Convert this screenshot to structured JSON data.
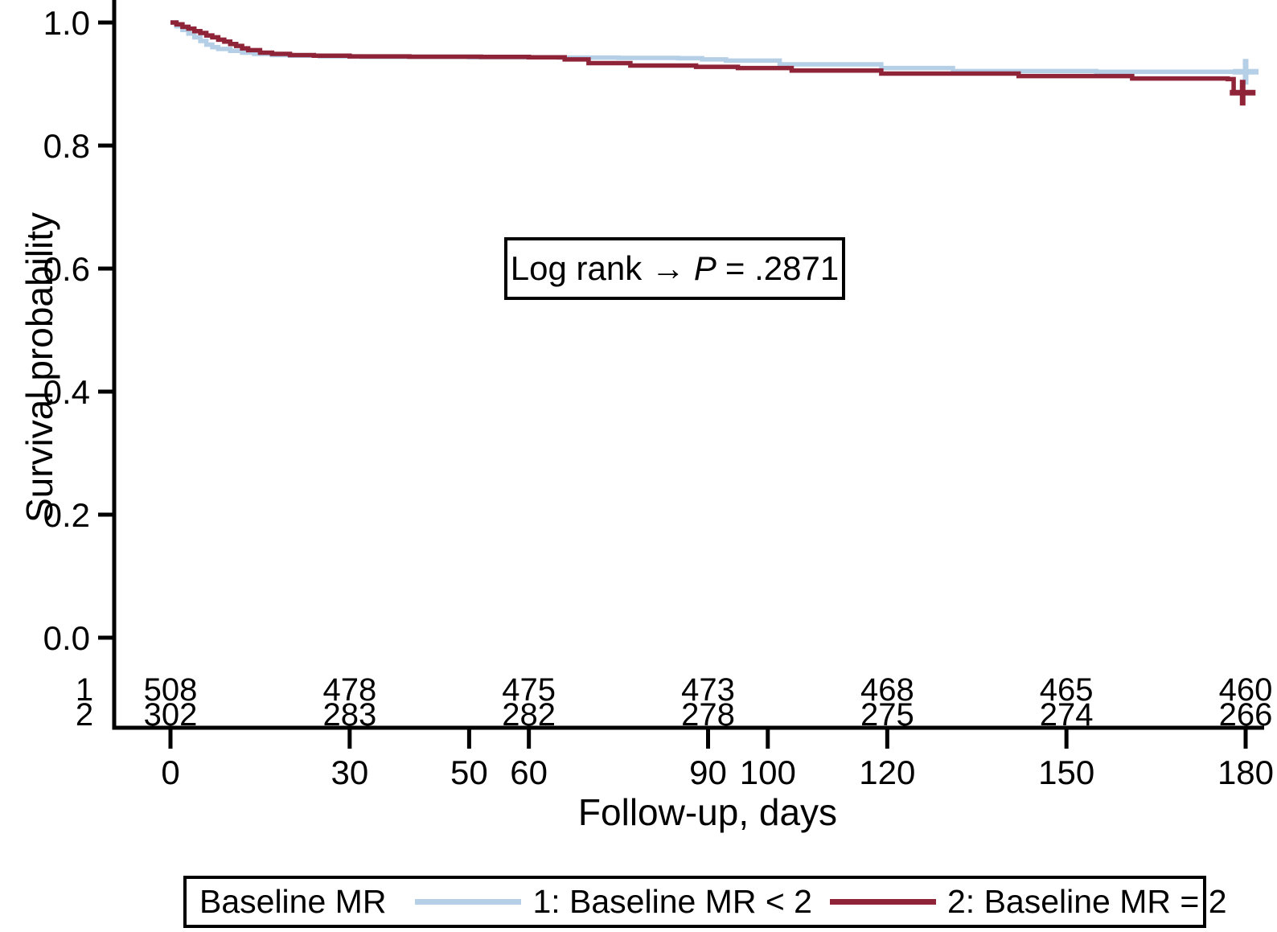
{
  "chart_data": {
    "type": "line",
    "subtype": "kaplan-meier-step-survival",
    "title": "",
    "xlabel": "Follow-up, days",
    "ylabel": "Survival probability",
    "xlim": [
      0,
      180
    ],
    "ylim": [
      0.0,
      1.0
    ],
    "x_ticks": [
      0,
      30,
      50,
      60,
      90,
      100,
      120,
      150,
      180
    ],
    "y_ticks": [
      1.0,
      0.8,
      0.6,
      0.4,
      0.2,
      0.0
    ],
    "grid": false,
    "legend_position": "bottom",
    "series": [
      {
        "name": "1: Baseline MR < 2",
        "group": "1",
        "color": "#b5cfe6",
        "points": [
          [
            0,
            1.0
          ],
          [
            1,
            0.994
          ],
          [
            2,
            0.988
          ],
          [
            3,
            0.982
          ],
          [
            4,
            0.976
          ],
          [
            5,
            0.97
          ],
          [
            6,
            0.964
          ],
          [
            7,
            0.96
          ],
          [
            8,
            0.957
          ],
          [
            10,
            0.954
          ],
          [
            12,
            0.951
          ],
          [
            14,
            0.949
          ],
          [
            17,
            0.947
          ],
          [
            20,
            0.946
          ],
          [
            25,
            0.945
          ],
          [
            32,
            0.944
          ],
          [
            50,
            0.9435
          ],
          [
            65,
            0.943
          ],
          [
            75,
            0.9425
          ],
          [
            85,
            0.942
          ],
          [
            89,
            0.94
          ],
          [
            93,
            0.938
          ],
          [
            102,
            0.932
          ],
          [
            119,
            0.926
          ],
          [
            131,
            0.921
          ],
          [
            155,
            0.92
          ],
          [
            180,
            0.92
          ]
        ],
        "censor_marks": [
          [
            180,
            0.92
          ]
        ]
      },
      {
        "name": "2: Baseline MR = 2",
        "group": "2",
        "color": "#8f2438",
        "points": [
          [
            0,
            1.0
          ],
          [
            1,
            0.997
          ],
          [
            2,
            0.993
          ],
          [
            3,
            0.99
          ],
          [
            4,
            0.986
          ],
          [
            5,
            0.983
          ],
          [
            6,
            0.979
          ],
          [
            7,
            0.976
          ],
          [
            8,
            0.972
          ],
          [
            9,
            0.969
          ],
          [
            10,
            0.965
          ],
          [
            11,
            0.962
          ],
          [
            12,
            0.958
          ],
          [
            13,
            0.955
          ],
          [
            15,
            0.951
          ],
          [
            17,
            0.949
          ],
          [
            20,
            0.947
          ],
          [
            24,
            0.946
          ],
          [
            30,
            0.945
          ],
          [
            40,
            0.9445
          ],
          [
            52,
            0.944
          ],
          [
            60,
            0.9435
          ],
          [
            66,
            0.94
          ],
          [
            70,
            0.934
          ],
          [
            77,
            0.93
          ],
          [
            88,
            0.928
          ],
          [
            95,
            0.926
          ],
          [
            104,
            0.922
          ],
          [
            119,
            0.917
          ],
          [
            142,
            0.913
          ],
          [
            161,
            0.909
          ],
          [
            177,
            0.908
          ],
          [
            178,
            0.886
          ],
          [
            180,
            0.886
          ]
        ],
        "censor_marks": [
          [
            179.5,
            0.886
          ]
        ]
      }
    ],
    "annotation": "Log rank → P = .2871",
    "risk_table": {
      "days": [
        0,
        30,
        60,
        90,
        120,
        150,
        180
      ],
      "rows": [
        {
          "label": "1",
          "color": "#4a6a9f",
          "counts": [
            508,
            478,
            475,
            473,
            468,
            465,
            460
          ]
        },
        {
          "label": "2",
          "color": "#a43e3c",
          "counts": [
            302,
            283,
            282,
            278,
            275,
            274,
            266
          ]
        }
      ]
    }
  },
  "axes": {
    "x_title": "Follow-up, days",
    "y_title": "Survival probability"
  },
  "annotation": {
    "prefix": "Log rank →",
    "p_symbol": "P",
    "value": "= .2871"
  },
  "legend": {
    "title": "Baseline MR",
    "entries": [
      {
        "label": "1: Baseline MR < 2",
        "color": "#b5cfe6"
      },
      {
        "label": "2: Baseline MR = 2",
        "color": "#8f2438"
      }
    ]
  },
  "colors": {
    "group1_line": "#b5cfe6",
    "group2_line": "#8f2438",
    "group1_text": "#4a6a9f",
    "group2_text": "#a43e3c",
    "axis": "#000000",
    "background": "#ffffff"
  }
}
